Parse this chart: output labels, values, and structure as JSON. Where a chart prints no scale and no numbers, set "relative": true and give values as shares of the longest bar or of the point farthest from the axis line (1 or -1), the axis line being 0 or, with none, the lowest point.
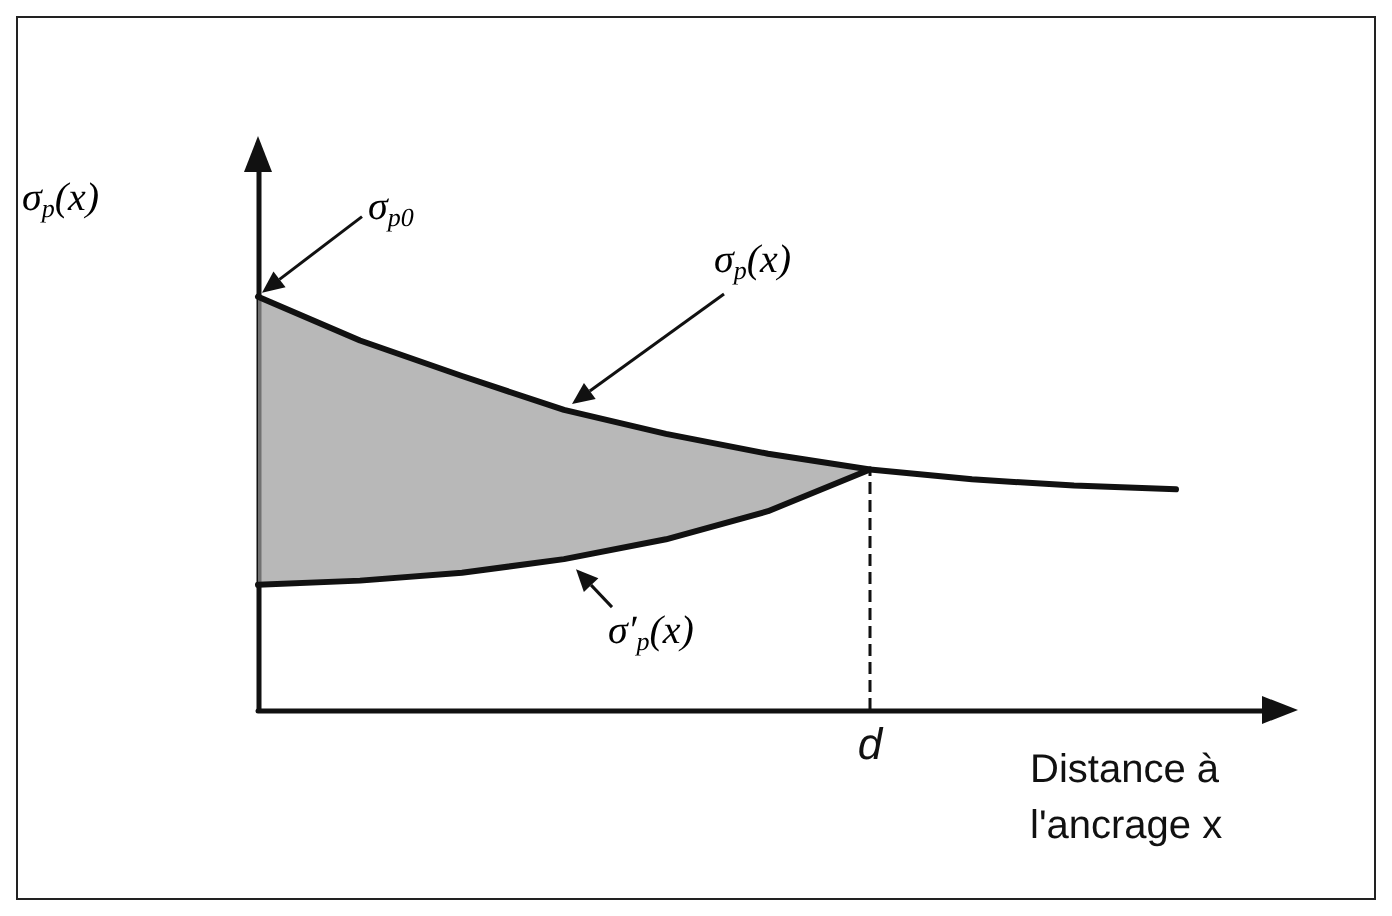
{
  "chart_data": {
    "type": "line",
    "relative": true,
    "ylabel": "σ$_{p}$(x)",
    "xlabel": "Distance à l'ancrage x",
    "categories": [
      null,
      null,
      null,
      null,
      null,
      null,
      null,
      null,
      null,
      null,
      null
    ],
    "series": [
      {
        "name": "σ$_{p}$(x)",
        "color": "#111111",
        "values": [
          1,
          0.894,
          0.808,
          0.726,
          0.668,
          0.62,
          0.582,
          0.558,
          0.543,
          0.534,
          null
        ],
        "lower": [
          0.303,
          0.313,
          0.332,
          0.365,
          0.413,
          0.481,
          0.582,
          null,
          null,
          null,
          null
        ],
        "upper": [
          1,
          0.894,
          0.808,
          0.726,
          0.668,
          0.62,
          0.582,
          null,
          null,
          null,
          null
        ]
      },
      {
        "color": "#111111",
        "values": [
          0.303,
          0.313,
          0.332,
          0.365,
          0.413,
          0.481,
          0.582,
          null,
          null,
          null,
          null
        ]
      }
    ],
    "ref_lines": [
      {
        "axis": "x",
        "label": "d",
        "line_style": "dashed"
      }
    ],
    "annotations": [
      "σ$_{p0}$",
      "σ′$_{p}$(x)"
    ],
    "grid": false,
    "legend": false,
    "marker": "none",
    "line_style": "solid"
  }
}
